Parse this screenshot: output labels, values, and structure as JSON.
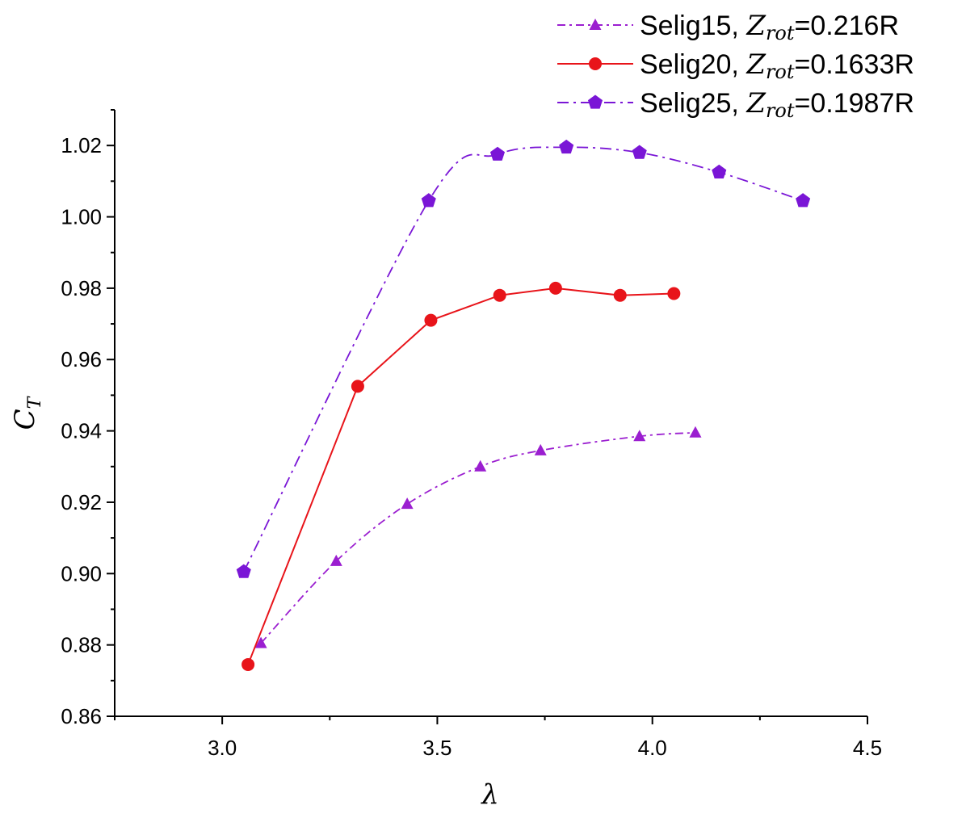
{
  "chart_data": {
    "type": "line",
    "title": "",
    "xlabel": "λ",
    "ylabel": "C",
    "ylabel_sub": "T",
    "xlim": [
      2.75,
      4.5
    ],
    "ylim": [
      0.86,
      1.03
    ],
    "xticks": [
      3.0,
      3.5,
      4.0,
      4.5
    ],
    "xtick_labels": [
      "3.0",
      "3.5",
      "4.0",
      "4.5"
    ],
    "yticks": [
      0.86,
      0.88,
      0.9,
      0.92,
      0.94,
      0.96,
      0.98,
      1.0,
      1.02
    ],
    "ytick_labels": [
      "0.86",
      "0.88",
      "0.90",
      "0.92",
      "0.94",
      "0.96",
      "0.98",
      "1.00",
      "1.02"
    ],
    "grid": false,
    "legend_position": "top-right",
    "series": [
      {
        "name": "Selig15",
        "legend_prefix": "Selig15, ",
        "legend_var": "Z",
        "legend_sub": "rot",
        "legend_value": "=0.216R",
        "color": "#9b1fd0",
        "marker": "triangle",
        "line_style": "dash-dot",
        "x": [
          3.09,
          3.265,
          3.43,
          3.6,
          3.74,
          3.97,
          4.1
        ],
        "y": [
          0.8805,
          0.9035,
          0.9195,
          0.93,
          0.9345,
          0.9385,
          0.9395
        ]
      },
      {
        "name": "Selig20",
        "legend_prefix": "Selig20, ",
        "legend_var": "Z",
        "legend_sub": "rot",
        "legend_value": "=0.1633R",
        "color": "#e8141a",
        "marker": "circle",
        "line_style": "solid",
        "x": [
          3.06,
          3.315,
          3.485,
          3.645,
          3.775,
          3.925,
          4.05
        ],
        "y": [
          0.8745,
          0.9525,
          0.971,
          0.978,
          0.98,
          0.978,
          0.9785
        ]
      },
      {
        "name": "Selig25",
        "legend_prefix": "Selig25, ",
        "legend_var": "Z",
        "legend_sub": "rot",
        "legend_value": "=0.1987R",
        "color": "#7a16d6",
        "marker": "pentagon",
        "line_style": "dash-dot-long",
        "x": [
          3.05,
          3.48,
          3.64,
          3.8,
          3.97,
          4.155,
          4.35
        ],
        "y": [
          0.9005,
          1.0045,
          1.0175,
          1.0195,
          1.018,
          1.0125,
          1.0045
        ]
      }
    ]
  }
}
